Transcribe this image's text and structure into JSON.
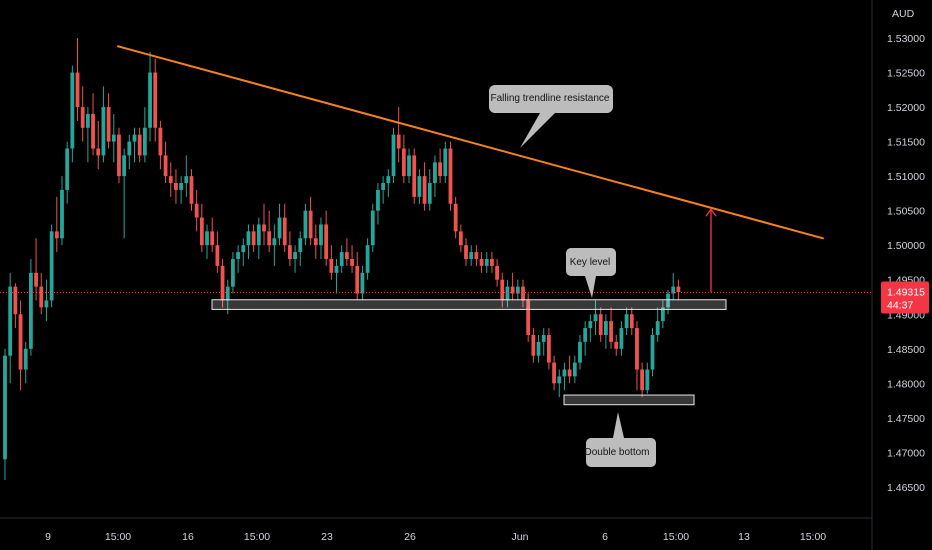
{
  "chart_data": {
    "type": "candlestick",
    "currency": "AUD",
    "y_ticks": [
      "1.46500",
      "1.47000",
      "1.47500",
      "1.48000",
      "1.48500",
      "1.49000",
      "1.49500",
      "1.50000",
      "1.50500",
      "1.51000",
      "1.51500",
      "1.52000",
      "1.52500",
      "1.53000"
    ],
    "y_tick_values": [
      1.465,
      1.47,
      1.475,
      1.48,
      1.485,
      1.49,
      1.495,
      1.5,
      1.505,
      1.51,
      1.515,
      1.52,
      1.525,
      1.53
    ],
    "x_ticks": [
      "9",
      "15:00",
      "16",
      "15:00",
      "23",
      "26",
      "Jun",
      "6",
      "15:00",
      "13",
      "15:00"
    ],
    "ylim": [
      1.4605,
      1.5355
    ],
    "last_price": {
      "value": 1.49315,
      "label": "1.49315",
      "countdown": "44:37",
      "color": "#f23645"
    },
    "colors": {
      "up": "#26a69a",
      "down": "#ef5350",
      "trendline": "#f7821b",
      "box": "#d9d9d9",
      "arrow": "#f23645",
      "callout": "#bcbcbc"
    },
    "trendline": {
      "start": {
        "x_index": 0,
        "price": 1.5288
      },
      "end": {
        "x_index": 10.4,
        "price": 1.501
      }
    },
    "key_level_zone": {
      "low": 1.4907,
      "high": 1.4921
    },
    "double_bottom_zone": {
      "low": 1.4769,
      "high": 1.4783
    },
    "target_arrow": {
      "from_price": 1.4932,
      "to_price": 1.5052
    },
    "annotations": [
      {
        "text": "Falling trendline resistance"
      },
      {
        "text": "Key level"
      },
      {
        "text": "Double bottom"
      }
    ],
    "candles": [
      [
        1.469,
        1.485,
        1.466,
        1.484
      ],
      [
        1.484,
        1.496,
        1.48,
        1.494
      ],
      [
        1.494,
        1.4945,
        1.488,
        1.49
      ],
      [
        1.49,
        1.492,
        1.479,
        1.482
      ],
      [
        1.482,
        1.486,
        1.48,
        1.485
      ],
      [
        1.485,
        1.498,
        1.484,
        1.496
      ],
      [
        1.496,
        1.501,
        1.492,
        1.494
      ],
      [
        1.494,
        1.496,
        1.49,
        1.491
      ],
      [
        1.491,
        1.495,
        1.489,
        1.492
      ],
      [
        1.492,
        1.503,
        1.491,
        1.502
      ],
      [
        1.502,
        1.507,
        1.499,
        1.501
      ],
      [
        1.501,
        1.51,
        1.5,
        1.508
      ],
      [
        1.508,
        1.515,
        1.506,
        1.514
      ],
      [
        1.514,
        1.526,
        1.512,
        1.525
      ],
      [
        1.525,
        1.53,
        1.518,
        1.52
      ],
      [
        1.52,
        1.523,
        1.515,
        1.517
      ],
      [
        1.517,
        1.52,
        1.512,
        1.519
      ],
      [
        1.519,
        1.522,
        1.513,
        1.514
      ],
      [
        1.514,
        1.518,
        1.511,
        1.513
      ],
      [
        1.513,
        1.523,
        1.512,
        1.52
      ],
      [
        1.52,
        1.522,
        1.514,
        1.515
      ],
      [
        1.515,
        1.519,
        1.512,
        1.516
      ],
      [
        1.516,
        1.517,
        1.509,
        1.51
      ],
      [
        1.51,
        1.514,
        1.501,
        1.513
      ],
      [
        1.513,
        1.516,
        1.511,
        1.515
      ],
      [
        1.515,
        1.517,
        1.512,
        1.516
      ],
      [
        1.516,
        1.517,
        1.512,
        1.513
      ],
      [
        1.513,
        1.52,
        1.512,
        1.517
      ],
      [
        1.517,
        1.528,
        1.515,
        1.525
      ],
      [
        1.525,
        1.527,
        1.515,
        1.517
      ],
      [
        1.517,
        1.518,
        1.511,
        1.513
      ],
      [
        1.513,
        1.515,
        1.509,
        1.51
      ],
      [
        1.51,
        1.512,
        1.507,
        1.509
      ],
      [
        1.509,
        1.511,
        1.506,
        1.508
      ],
      [
        1.508,
        1.51,
        1.506,
        1.509
      ],
      [
        1.509,
        1.513,
        1.507,
        1.51
      ],
      [
        1.51,
        1.511,
        1.505,
        1.506
      ],
      [
        1.506,
        1.508,
        1.502,
        1.504
      ],
      [
        1.504,
        1.506,
        1.499,
        1.5
      ],
      [
        1.5,
        1.503,
        1.498,
        1.502
      ],
      [
        1.502,
        1.504,
        1.499,
        1.5
      ],
      [
        1.5,
        1.502,
        1.496,
        1.497
      ],
      [
        1.497,
        1.498,
        1.491,
        1.492
      ],
      [
        1.492,
        1.495,
        1.49,
        1.494
      ],
      [
        1.494,
        1.499,
        1.493,
        1.498
      ],
      [
        1.498,
        1.5,
        1.496,
        1.499
      ],
      [
        1.499,
        1.501,
        1.497,
        1.5
      ],
      [
        1.5,
        1.503,
        1.498,
        1.502
      ],
      [
        1.502,
        1.503,
        1.499,
        1.5
      ],
      [
        1.5,
        1.504,
        1.498,
        1.503
      ],
      [
        1.503,
        1.506,
        1.5,
        1.502
      ],
      [
        1.502,
        1.505,
        1.499,
        1.5
      ],
      [
        1.5,
        1.503,
        1.497,
        1.501
      ],
      [
        1.501,
        1.506,
        1.5,
        1.504
      ],
      [
        1.504,
        1.506,
        1.499,
        1.5
      ],
      [
        1.5,
        1.502,
        1.497,
        1.498
      ],
      [
        1.498,
        1.5,
        1.496,
        1.499
      ],
      [
        1.499,
        1.502,
        1.497,
        1.501
      ],
      [
        1.501,
        1.506,
        1.5,
        1.505
      ],
      [
        1.505,
        1.507,
        1.5,
        1.501
      ],
      [
        1.501,
        1.503,
        1.498,
        1.5
      ],
      [
        1.5,
        1.504,
        1.498,
        1.503
      ],
      [
        1.503,
        1.505,
        1.497,
        1.498
      ],
      [
        1.498,
        1.5,
        1.495,
        1.496
      ],
      [
        1.496,
        1.498,
        1.493,
        1.497
      ],
      [
        1.497,
        1.5,
        1.496,
        1.499
      ],
      [
        1.499,
        1.501,
        1.497,
        1.498
      ],
      [
        1.498,
        1.5,
        1.496,
        1.497
      ],
      [
        1.497,
        1.499,
        1.492,
        1.493
      ],
      [
        1.493,
        1.497,
        1.492,
        1.496
      ],
      [
        1.496,
        1.501,
        1.495,
        1.5
      ],
      [
        1.5,
        1.506,
        1.499,
        1.505
      ],
      [
        1.505,
        1.509,
        1.503,
        1.508
      ],
      [
        1.508,
        1.51,
        1.506,
        1.509
      ],
      [
        1.509,
        1.511,
        1.507,
        1.51
      ],
      [
        1.51,
        1.517,
        1.509,
        1.516
      ],
      [
        1.516,
        1.52,
        1.512,
        1.514
      ],
      [
        1.514,
        1.516,
        1.509,
        1.51
      ],
      [
        1.51,
        1.514,
        1.509,
        1.513
      ],
      [
        1.513,
        1.514,
        1.506,
        1.507
      ],
      [
        1.507,
        1.511,
        1.506,
        1.51
      ],
      [
        1.51,
        1.512,
        1.505,
        1.506
      ],
      [
        1.506,
        1.511,
        1.505,
        1.509
      ],
      [
        1.509,
        1.513,
        1.507,
        1.512
      ],
      [
        1.512,
        1.514,
        1.509,
        1.51
      ],
      [
        1.51,
        1.515,
        1.509,
        1.514
      ],
      [
        1.514,
        1.515,
        1.505,
        1.506
      ],
      [
        1.506,
        1.507,
        1.501,
        1.502
      ],
      [
        1.502,
        1.503,
        1.499,
        1.5
      ],
      [
        1.5,
        1.501,
        1.497,
        1.498
      ],
      [
        1.498,
        1.5,
        1.497,
        1.499
      ],
      [
        1.499,
        1.5,
        1.497,
        1.498
      ],
      [
        1.498,
        1.499,
        1.496,
        1.497
      ],
      [
        1.497,
        1.499,
        1.496,
        1.498
      ],
      [
        1.498,
        1.499,
        1.496,
        1.497
      ],
      [
        1.497,
        1.498,
        1.494,
        1.495
      ],
      [
        1.495,
        1.496,
        1.491,
        1.492
      ],
      [
        1.492,
        1.495,
        1.491,
        1.494
      ],
      [
        1.494,
        1.496,
        1.492,
        1.493
      ],
      [
        1.493,
        1.495,
        1.492,
        1.494
      ],
      [
        1.494,
        1.495,
        1.491,
        1.492
      ],
      [
        1.492,
        1.493,
        1.486,
        1.487
      ],
      [
        1.487,
        1.488,
        1.483,
        1.484
      ],
      [
        1.484,
        1.487,
        1.483,
        1.486
      ],
      [
        1.486,
        1.488,
        1.484,
        1.487
      ],
      [
        1.487,
        1.488,
        1.482,
        1.483
      ],
      [
        1.483,
        1.484,
        1.479,
        1.48
      ],
      [
        1.48,
        1.482,
        1.478,
        1.481
      ],
      [
        1.481,
        1.483,
        1.479,
        1.482
      ],
      [
        1.482,
        1.484,
        1.48,
        1.481
      ],
      [
        1.481,
        1.484,
        1.48,
        1.483
      ],
      [
        1.483,
        1.487,
        1.482,
        1.486
      ],
      [
        1.486,
        1.489,
        1.484,
        1.488
      ],
      [
        1.488,
        1.49,
        1.486,
        1.489
      ],
      [
        1.489,
        1.492,
        1.487,
        1.49
      ],
      [
        1.49,
        1.491,
        1.486,
        1.487
      ],
      [
        1.487,
        1.49,
        1.485,
        1.489
      ],
      [
        1.489,
        1.491,
        1.485,
        1.486
      ],
      [
        1.486,
        1.487,
        1.484,
        1.485
      ],
      [
        1.485,
        1.489,
        1.484,
        1.488
      ],
      [
        1.488,
        1.491,
        1.487,
        1.49
      ],
      [
        1.49,
        1.491,
        1.487,
        1.488
      ],
      [
        1.488,
        1.489,
        1.479,
        1.482
      ],
      [
        1.482,
        1.483,
        1.478,
        1.479
      ],
      [
        1.479,
        1.483,
        1.4785,
        1.482
      ],
      [
        1.482,
        1.488,
        1.481,
        1.487
      ],
      [
        1.487,
        1.491,
        1.486,
        1.489
      ],
      [
        1.489,
        1.492,
        1.488,
        1.491
      ],
      [
        1.491,
        1.4935,
        1.49,
        1.493
      ],
      [
        1.493,
        1.496,
        1.492,
        1.494
      ],
      [
        1.494,
        1.495,
        1.492,
        1.4932
      ]
    ]
  }
}
